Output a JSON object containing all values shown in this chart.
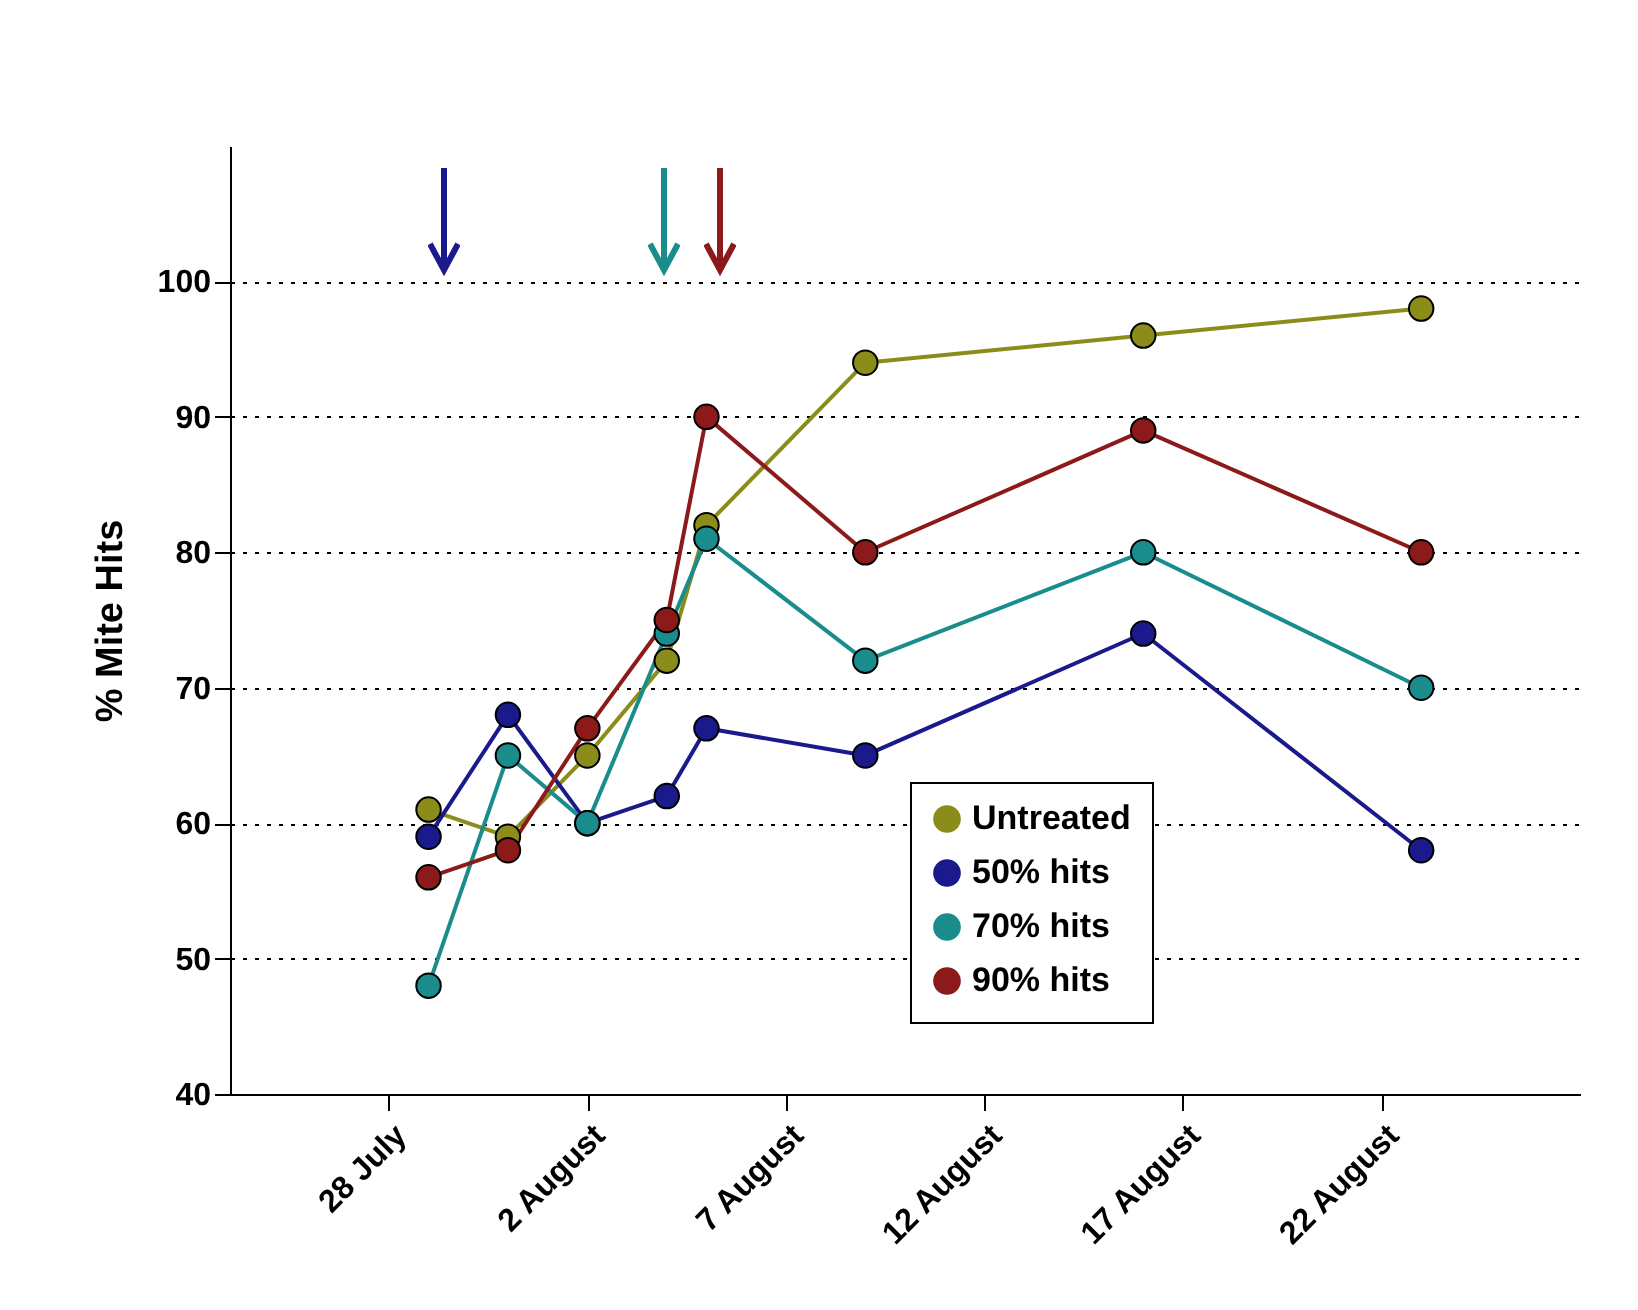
{
  "chart_data": {
    "type": "line",
    "ylabel": "% Mite Hits",
    "x": [
      "--07-29",
      "--07-31",
      "--08-02",
      "--08-04",
      "--08-05",
      "--08-09",
      "--08-16",
      "--08-23"
    ],
    "xlim": [
      "--07-24",
      "--08-27"
    ],
    "xticks": [
      {
        "value": "--07-28",
        "label": "28 July"
      },
      {
        "value": "--08-02",
        "label": "2 August"
      },
      {
        "value": "--08-07",
        "label": "7 August"
      },
      {
        "value": "--08-12",
        "label": "12 August"
      },
      {
        "value": "--08-17",
        "label": "17 August"
      },
      {
        "value": "--08-22",
        "label": "22 August"
      }
    ],
    "ylim": [
      40,
      110
    ],
    "yticks": [
      40,
      50,
      60,
      70,
      80,
      90,
      100
    ],
    "grid": "y",
    "legend": "bottom right",
    "marker": "circle",
    "line_style": "solid",
    "series": [
      {
        "name": "Untreated",
        "color": "#8c8c1a",
        "values": [
          61,
          59,
          65,
          72,
          82,
          94,
          96,
          98
        ]
      },
      {
        "name": "50%  hits",
        "color": "#1a1a8c",
        "values": [
          59,
          68,
          60,
          62,
          67,
          65,
          74,
          58
        ]
      },
      {
        "name": "70%  hits",
        "color": "#1a8c8c",
        "values": [
          48,
          65,
          60,
          74,
          81,
          72,
          80,
          70
        ]
      },
      {
        "name": "90%  hits",
        "color": "#8c1a1a",
        "values": [
          56,
          58,
          67,
          75,
          90,
          80,
          89,
          80
        ]
      }
    ]
  }
}
